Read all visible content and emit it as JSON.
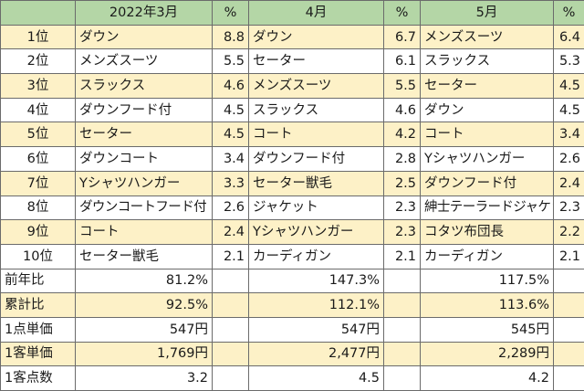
{
  "headers": [
    "",
    "2022年3月",
    "%",
    "4月",
    "%",
    "5月",
    "%"
  ],
  "rank_rows": [
    {
      "rank": "1位",
      "cells": [
        [
          "ダウン",
          "8.8"
        ],
        [
          "ダウン",
          "6.7"
        ],
        [
          "メンズスーツ",
          "6.4"
        ]
      ]
    },
    {
      "rank": "2位",
      "cells": [
        [
          "メンズスーツ",
          "5.5"
        ],
        [
          "セーター",
          "6.1"
        ],
        [
          "スラックス",
          "5.3"
        ]
      ]
    },
    {
      "rank": "3位",
      "cells": [
        [
          "スラックス",
          "4.6"
        ],
        [
          "メンズスーツ",
          "5.5"
        ],
        [
          "セーター",
          "4.5"
        ]
      ]
    },
    {
      "rank": "4位",
      "cells": [
        [
          "ダウンフード付",
          "4.5"
        ],
        [
          "スラックス",
          "4.6"
        ],
        [
          "ダウン",
          "4.5"
        ]
      ]
    },
    {
      "rank": "5位",
      "cells": [
        [
          "セーター",
          "4.5"
        ],
        [
          "コート",
          "4.2"
        ],
        [
          "コート",
          "3.4"
        ]
      ]
    },
    {
      "rank": "6位",
      "cells": [
        [
          "ダウンコート",
          "3.4"
        ],
        [
          "ダウンフード付",
          "2.8"
        ],
        [
          "Yシャツハンガー",
          "2.6"
        ]
      ]
    },
    {
      "rank": "7位",
      "cells": [
        [
          "Yシャツハンガー",
          "3.3"
        ],
        [
          "セーター獣毛",
          "2.5"
        ],
        [
          "ダウンフード付",
          "2.4"
        ]
      ]
    },
    {
      "rank": "8位",
      "cells": [
        [
          "ダウンコートフード付",
          "2.6"
        ],
        [
          "ジャケット",
          "2.3"
        ],
        [
          "紳士テーラードジャケット",
          "2.3"
        ]
      ]
    },
    {
      "rank": "9位",
      "cells": [
        [
          "コート",
          "2.4"
        ],
        [
          "Yシャツハンガー",
          "2.3"
        ],
        [
          "コタツ布団長",
          "2.2"
        ]
      ]
    },
    {
      "rank": "10位",
      "cells": [
        [
          "セーター獣毛",
          "2.1"
        ],
        [
          "カーディガン",
          "2.1"
        ],
        [
          "カーディガン",
          "2.1"
        ]
      ]
    }
  ],
  "summary_rows": [
    {
      "label": "前年比",
      "values": [
        "81.2%",
        "147.3%",
        "117.5%"
      ]
    },
    {
      "label": "累計比",
      "values": [
        "92.5%",
        "112.1%",
        "113.6%"
      ]
    },
    {
      "label": "1点単価",
      "values": [
        "547円",
        "547円",
        "545円"
      ]
    },
    {
      "label": "1客単価",
      "values": [
        "1,769円",
        "2,477円",
        "2,289円"
      ]
    },
    {
      "label": "1客点数",
      "values": [
        "3.2",
        "4.5",
        "4.2"
      ]
    }
  ],
  "colors": {
    "header_bg": "#b4d6a6",
    "shaded_row_bg": "#fdf1c7",
    "border": "#6b6b6b"
  }
}
